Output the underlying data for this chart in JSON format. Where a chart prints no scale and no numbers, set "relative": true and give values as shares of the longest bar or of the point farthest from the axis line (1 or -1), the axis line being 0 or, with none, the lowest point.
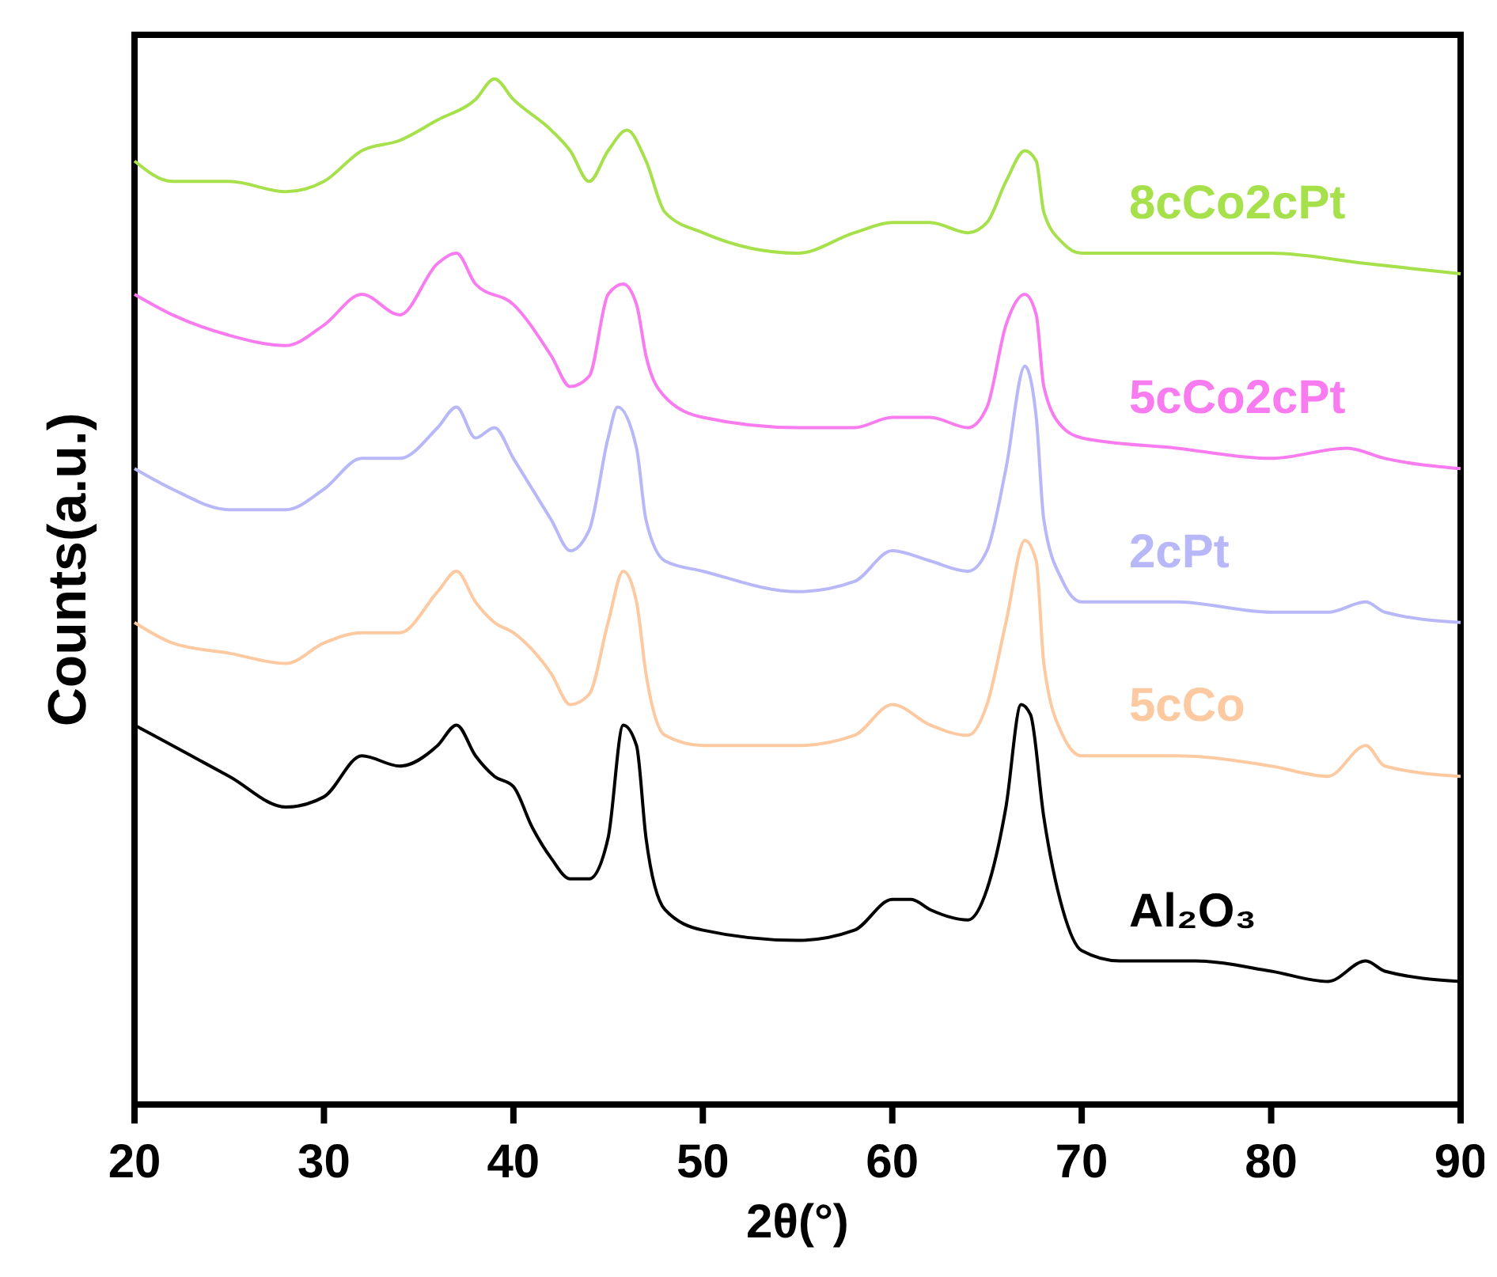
{
  "chart_data": {
    "type": "line",
    "xlabel": "2θ(°)",
    "ylabel": "Counts(a.u.)",
    "relative": true,
    "xlim": [
      20,
      90
    ],
    "xticks": [
      20,
      30,
      40,
      50,
      60,
      70,
      80,
      90
    ],
    "series": [
      {
        "name": "Al₂O₃",
        "color": "#000000",
        "x": [
          20,
          22,
          25,
          28,
          30,
          32,
          34,
          36,
          37,
          38,
          39,
          40,
          41,
          42,
          43,
          44,
          45,
          45.8,
          46.5,
          47,
          48,
          50,
          55,
          58,
          60,
          61,
          62,
          64,
          65,
          66,
          66.8,
          67.3,
          68,
          69,
          70,
          72,
          76,
          80,
          83,
          85,
          86,
          90
        ],
        "values": [
          0.37,
          0.35,
          0.32,
          0.29,
          0.3,
          0.34,
          0.33,
          0.35,
          0.37,
          0.34,
          0.32,
          0.31,
          0.27,
          0.24,
          0.22,
          0.22,
          0.26,
          0.37,
          0.35,
          0.26,
          0.19,
          0.17,
          0.16,
          0.17,
          0.2,
          0.2,
          0.19,
          0.18,
          0.21,
          0.29,
          0.39,
          0.38,
          0.28,
          0.19,
          0.15,
          0.14,
          0.14,
          0.13,
          0.12,
          0.14,
          0.13,
          0.12
        ]
      },
      {
        "name": "5cCo",
        "color": "#fdc9a0",
        "x": [
          20,
          22,
          25,
          28,
          30,
          32,
          34,
          36,
          37,
          38,
          39,
          40,
          42,
          43,
          44,
          45,
          45.8,
          46.5,
          47,
          48,
          50,
          55,
          58,
          60,
          62,
          64,
          65,
          66,
          67,
          67.6,
          68,
          69,
          70,
          75,
          80,
          83,
          85,
          86,
          90
        ],
        "values": [
          0.47,
          0.45,
          0.44,
          0.43,
          0.45,
          0.46,
          0.46,
          0.5,
          0.52,
          0.49,
          0.47,
          0.46,
          0.42,
          0.39,
          0.4,
          0.47,
          0.52,
          0.49,
          0.42,
          0.36,
          0.35,
          0.35,
          0.36,
          0.39,
          0.37,
          0.36,
          0.39,
          0.47,
          0.55,
          0.53,
          0.43,
          0.36,
          0.34,
          0.34,
          0.33,
          0.32,
          0.35,
          0.33,
          0.32
        ]
      },
      {
        "name": "2cPt",
        "color": "#b8b8f8",
        "x": [
          20,
          22,
          25,
          28,
          30,
          32,
          34,
          36,
          37,
          38,
          39,
          40,
          42,
          43,
          44,
          45,
          45.5,
          46.5,
          47,
          48,
          50,
          55,
          58,
          60,
          62,
          64,
          65,
          66,
          67,
          67.6,
          68,
          69,
          70,
          75,
          80,
          83,
          85,
          86,
          90
        ],
        "values": [
          0.62,
          0.6,
          0.58,
          0.58,
          0.6,
          0.63,
          0.63,
          0.66,
          0.68,
          0.65,
          0.66,
          0.63,
          0.57,
          0.54,
          0.56,
          0.65,
          0.68,
          0.64,
          0.57,
          0.53,
          0.52,
          0.5,
          0.51,
          0.54,
          0.53,
          0.52,
          0.54,
          0.62,
          0.72,
          0.67,
          0.57,
          0.51,
          0.49,
          0.49,
          0.48,
          0.48,
          0.49,
          0.48,
          0.47
        ]
      },
      {
        "name": "5cCo2cPt",
        "color": "#f87cf0",
        "x": [
          20,
          22,
          25,
          28,
          30,
          32,
          34,
          36,
          37,
          38,
          40,
          42,
          43,
          44,
          45,
          45.8,
          46.5,
          47,
          48,
          50,
          55,
          58,
          60,
          62,
          64,
          65,
          66,
          67,
          67.6,
          68,
          69,
          70,
          75,
          80,
          84,
          86,
          90
        ],
        "values": [
          0.79,
          0.77,
          0.75,
          0.74,
          0.76,
          0.79,
          0.77,
          0.82,
          0.83,
          0.8,
          0.78,
          0.73,
          0.7,
          0.71,
          0.79,
          0.8,
          0.78,
          0.73,
          0.69,
          0.67,
          0.66,
          0.66,
          0.67,
          0.67,
          0.66,
          0.68,
          0.76,
          0.79,
          0.77,
          0.7,
          0.66,
          0.65,
          0.64,
          0.63,
          0.64,
          0.63,
          0.62
        ]
      },
      {
        "name": "8cCo2cPt",
        "color": "#a6e04a",
        "x": [
          20,
          22,
          25,
          28,
          30,
          32,
          34,
          36,
          38,
          39,
          40,
          42,
          43,
          44,
          45,
          46,
          47,
          48,
          50,
          55,
          58,
          60,
          62,
          64,
          65,
          66,
          67,
          67.6,
          68,
          69,
          70,
          75,
          80,
          85,
          90
        ],
        "values": [
          0.92,
          0.9,
          0.9,
          0.89,
          0.9,
          0.93,
          0.94,
          0.96,
          0.98,
          1,
          0.98,
          0.95,
          0.93,
          0.9,
          0.93,
          0.95,
          0.92,
          0.87,
          0.85,
          0.83,
          0.85,
          0.86,
          0.86,
          0.85,
          0.86,
          0.9,
          0.93,
          0.92,
          0.87,
          0.84,
          0.83,
          0.83,
          0.83,
          0.82,
          0.81
        ]
      }
    ]
  }
}
